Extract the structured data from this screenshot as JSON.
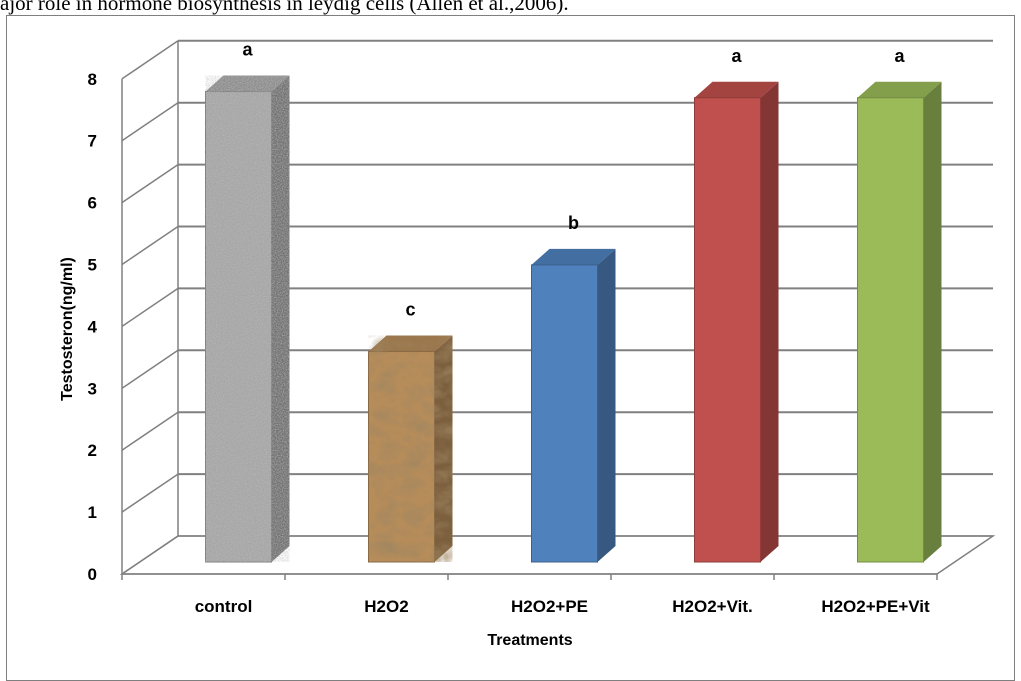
{
  "caption": "ajor role in hormone biosynthesis in leydig cells (Allen et al.,2006).",
  "chart_data": {
    "type": "bar",
    "style": "3d-column",
    "categories": [
      "control",
      "H2O2",
      "H2O2+PE",
      "H2O2+Vit.",
      "H2O2+PE+Vit"
    ],
    "values": [
      7.6,
      3.4,
      4.8,
      7.5,
      7.5
    ],
    "significance_letters": [
      "a",
      "c",
      "b",
      "a",
      "a"
    ],
    "xlabel": "Treatments",
    "ylabel": "Testosteron(ng/ml)",
    "ylim": [
      0,
      8
    ],
    "yticks": [
      "0",
      "1",
      "2",
      "3",
      "4",
      "5",
      "6",
      "7",
      "8"
    ],
    "grid": true,
    "legend": "none",
    "colors": [
      "#a6a6a6",
      "#b68c5a",
      "#4f81bd",
      "#c0504d",
      "#9bbb59"
    ]
  }
}
